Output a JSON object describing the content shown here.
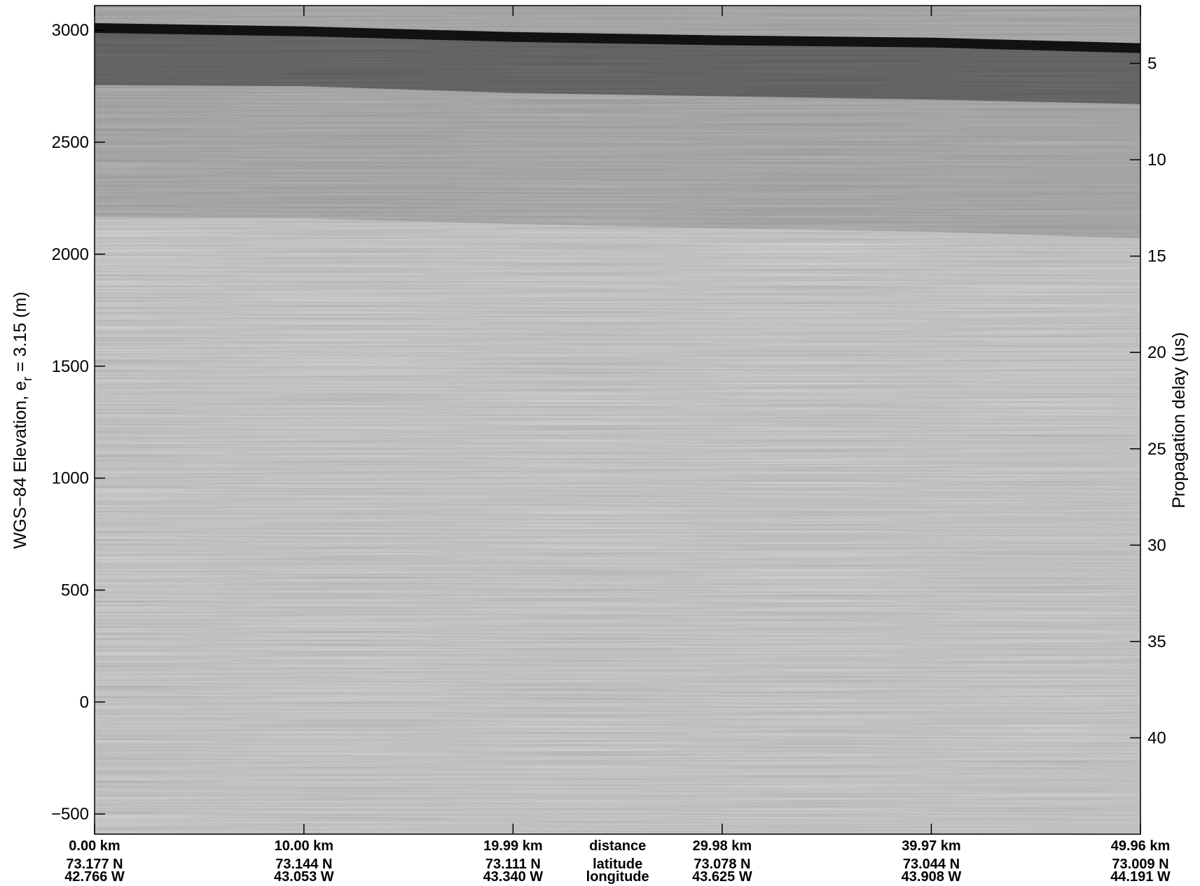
{
  "chart_data": {
    "type": "heatmap",
    "colormap": "grayscale",
    "left_axis": {
      "label_prefix": "WGS−84 Elevation, e",
      "label_subscript": "r",
      "label_suffix": " = 3.15 (m)",
      "ticks": [
        3000,
        2500,
        2000,
        1500,
        1000,
        500,
        0,
        -500
      ],
      "tick_labels": [
        "3000",
        "2500",
        "2000",
        "1500",
        "1000",
        "500",
        "0",
        "−500"
      ],
      "range": [
        -590,
        3110
      ]
    },
    "right_axis": {
      "label": "Propagation delay (us)",
      "ticks": [
        5,
        10,
        15,
        20,
        25,
        30,
        35,
        40
      ],
      "tick_labels": [
        "5",
        "10",
        "15",
        "20",
        "25",
        "30",
        "35",
        "40"
      ],
      "range": [
        2.0,
        45.0
      ]
    },
    "x_axis": {
      "range_km": [
        0,
        49.96
      ],
      "ticks_km": [
        0,
        10.0,
        19.99,
        29.98,
        39.97,
        49.96
      ],
      "row_names": [
        "distance",
        "latitude",
        "longitude"
      ],
      "distance_labels": [
        "0.00 km",
        "10.00 km",
        "19.99 km",
        "29.98 km",
        "39.97 km",
        "49.96 km"
      ],
      "latitude_labels": [
        "73.177 N",
        "73.144 N",
        "73.111 N",
        "73.078 N",
        "73.044 N",
        "73.009 N"
      ],
      "longitude_labels": [
        "42.766 W",
        "43.053 W",
        "43.340 W",
        "43.625 W",
        "43.908 W",
        "44.191 W"
      ]
    },
    "layers": {
      "distance_km": [
        0,
        10,
        20,
        30,
        40,
        49.96
      ],
      "surface_elevation_m": [
        3010,
        2995,
        2970,
        2955,
        2945,
        2920
      ],
      "dark_band_base_m": [
        2755,
        2750,
        2720,
        2705,
        2690,
        2670
      ],
      "mid_gray_base_m": [
        2165,
        2160,
        2135,
        2115,
        2100,
        2070
      ]
    }
  }
}
